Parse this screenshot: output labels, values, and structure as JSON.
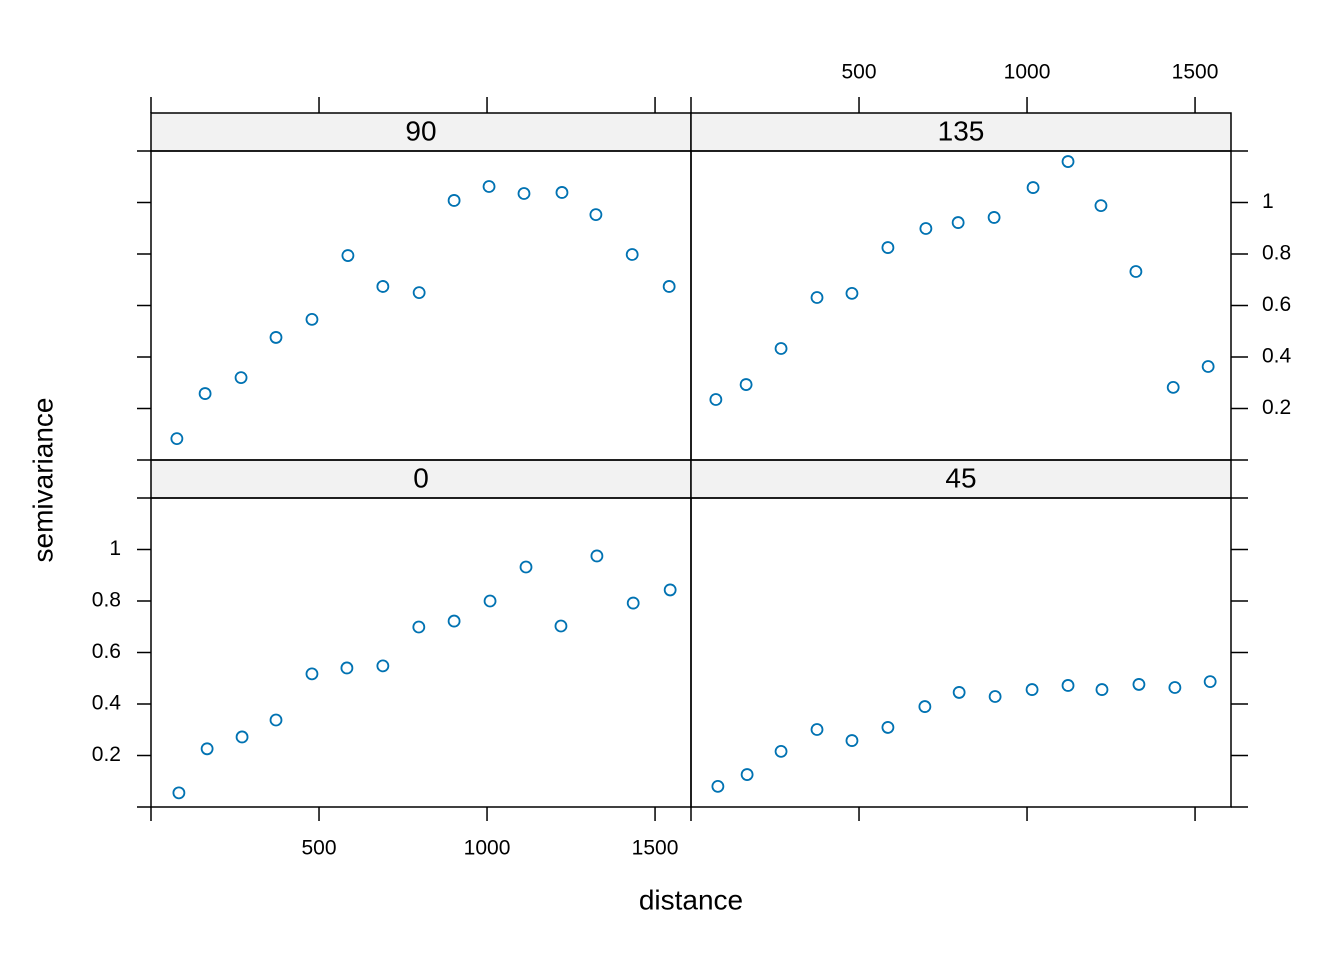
{
  "chart_data": {
    "type": "scatter",
    "xlabel": "distance",
    "ylabel": "semivariance",
    "color": "#0072b2",
    "xlim": [
      0,
      1607
    ],
    "ylim": [
      0,
      1.2
    ],
    "xticks": [
      500,
      1000,
      1500
    ],
    "yticks": [
      0.2,
      0.4,
      0.6,
      0.8,
      1.0
    ],
    "panels": [
      {
        "title": "0",
        "x": [
          83,
          167,
          271,
          372,
          479,
          583,
          690,
          797,
          902,
          1009,
          1116,
          1220,
          1327,
          1435,
          1545
        ],
        "values": [
          0.055,
          0.226,
          0.272,
          0.338,
          0.517,
          0.54,
          0.548,
          0.699,
          0.722,
          0.8,
          0.932,
          0.703,
          0.975,
          0.792,
          0.843
        ]
      },
      {
        "title": "45",
        "x": [
          80,
          167,
          268,
          375,
          479,
          586,
          696,
          798,
          905,
          1015,
          1122,
          1223,
          1333,
          1440,
          1545
        ],
        "values": [
          0.08,
          0.126,
          0.216,
          0.301,
          0.258,
          0.309,
          0.39,
          0.445,
          0.429,
          0.456,
          0.472,
          0.456,
          0.476,
          0.464,
          0.487
        ]
      },
      {
        "title": "90",
        "x": [
          77,
          161,
          268,
          372,
          479,
          586,
          690,
          798,
          902,
          1006,
          1110,
          1223,
          1324,
          1432,
          1542
        ],
        "values": [
          0.083,
          0.258,
          0.32,
          0.476,
          0.546,
          0.794,
          0.674,
          0.65,
          1.008,
          1.062,
          1.035,
          1.039,
          0.953,
          0.798,
          0.674
        ]
      },
      {
        "title": "135",
        "x": [
          74,
          164,
          268,
          375,
          479,
          586,
          699,
          795,
          902,
          1018,
          1122,
          1220,
          1324,
          1435,
          1539
        ],
        "values": [
          0.235,
          0.293,
          0.433,
          0.631,
          0.647,
          0.825,
          0.899,
          0.922,
          0.942,
          1.058,
          1.159,
          0.988,
          0.732,
          0.282,
          0.363
        ]
      }
    ]
  }
}
